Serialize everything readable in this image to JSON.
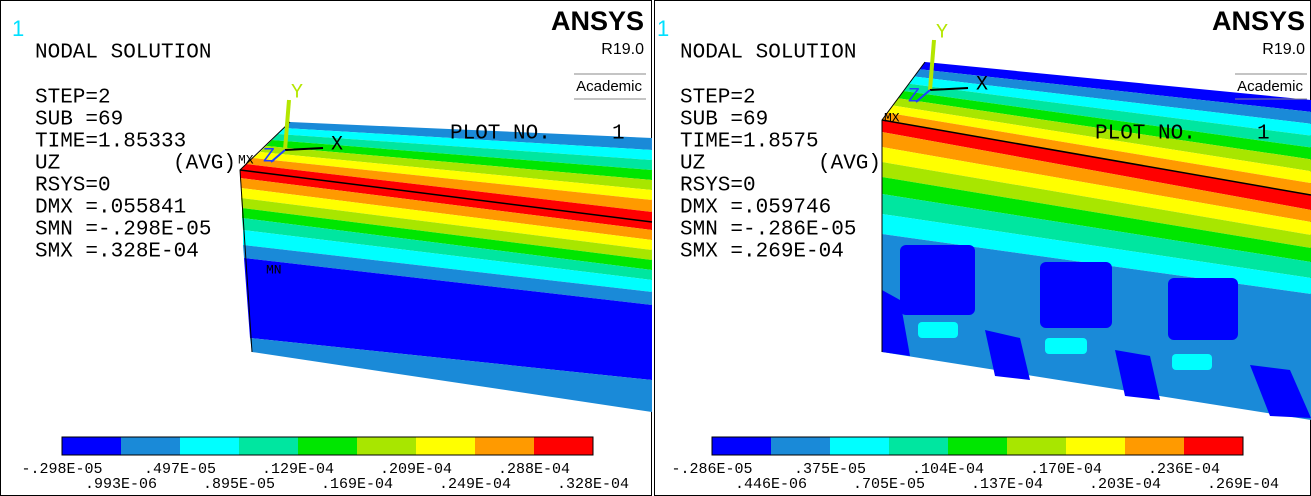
{
  "panels": [
    {
      "window_number": "1",
      "brand": "ANSYS",
      "version": "R19.0",
      "license": "Academic",
      "title": "NODAL SOLUTION",
      "info": [
        "STEP=2",
        "SUB =69",
        "TIME=1.85333"
      ],
      "result": "UZ",
      "avg": "(AVG)",
      "stats": [
        "RSYS=0",
        "DMX =.055841",
        "SMN =-.298E-05",
        "SMX =.328E-04"
      ],
      "plot_label": "PLOT NO.",
      "plot_number": "1",
      "axes": {
        "x": "X",
        "y": "Y",
        "z": "Z"
      },
      "markers": {
        "max": "MX",
        "min": "MN"
      },
      "legend": {
        "upper": [
          "-.298E-05",
          ".497E-05",
          ".129E-04",
          ".209E-04",
          ".288E-04"
        ],
        "lower": [
          ".993E-06",
          ".895E-05",
          ".169E-04",
          ".249E-04",
          ".328E-04"
        ]
      }
    },
    {
      "window_number": "1",
      "brand": "ANSYS",
      "version": "R19.0",
      "license": "Academic",
      "title": "NODAL SOLUTION",
      "info": [
        "STEP=2",
        "SUB =69",
        "TIME=1.8575"
      ],
      "result": "UZ",
      "avg": "(AVG)",
      "stats": [
        "RSYS=0",
        "DMX =.059746",
        "SMN =-.286E-05",
        "SMX =.269E-04"
      ],
      "plot_label": "PLOT NO.",
      "plot_number": "1",
      "axes": {
        "x": "X",
        "y": "Y",
        "z": "Z"
      },
      "markers": {
        "max": "MX"
      },
      "legend": {
        "upper": [
          "-.286E-05",
          ".375E-05",
          ".104E-04",
          ".170E-04",
          ".236E-04"
        ],
        "lower": [
          ".446E-06",
          ".705E-05",
          ".137E-04",
          ".203E-04",
          ".269E-04"
        ]
      }
    }
  ]
}
